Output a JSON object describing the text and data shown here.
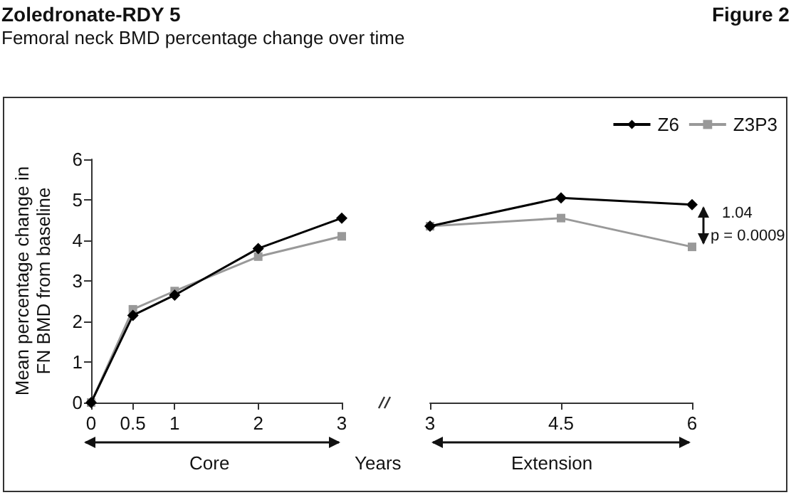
{
  "chart_data": [
    {
      "type": "line",
      "title": "Zoledronate-RDY 5",
      "subtitle": "Femoral neck BMD percentage change over time",
      "ylabel": "Mean percentage change in\nFN BMD from baseline",
      "x": [
        0,
        0.5,
        1,
        2,
        3
      ],
      "xlim": [
        0,
        3
      ],
      "xticks": [
        0,
        0.5,
        1,
        2,
        3
      ],
      "ylim": [
        0,
        6
      ],
      "yticks": [
        0,
        1,
        2,
        3,
        4,
        5,
        6
      ],
      "grid": false,
      "legend": false,
      "series": [
        {
          "color": "#000000",
          "marker": "diamond",
          "values": [
            0,
            2.15,
            2.65,
            3.8,
            4.55
          ]
        },
        {
          "color": "#999999",
          "marker": "square",
          "values": [
            0,
            2.3,
            2.75,
            3.6,
            4.1
          ]
        }
      ],
      "annotations": [
        "Figure 2",
        "Core",
        "Years"
      ]
    },
    {
      "type": "line",
      "x": [
        3,
        4.5,
        6
      ],
      "xlim": [
        3,
        6
      ],
      "xticks": [
        3,
        4.5,
        6
      ],
      "ylim": [
        0,
        6
      ],
      "tick_labels": "x",
      "grid": false,
      "legend": "top right",
      "series": [
        {
          "name": "Z6",
          "color": "#000000",
          "marker": "diamond",
          "values": [
            4.35,
            5.05,
            4.88
          ]
        },
        {
          "name": "Z3P3",
          "color": "#999999",
          "marker": "square",
          "values": [
            4.35,
            4.55,
            3.84
          ]
        }
      ],
      "annotations": [
        "Extension",
        "1.04",
        "p = 0.0009"
      ]
    }
  ]
}
